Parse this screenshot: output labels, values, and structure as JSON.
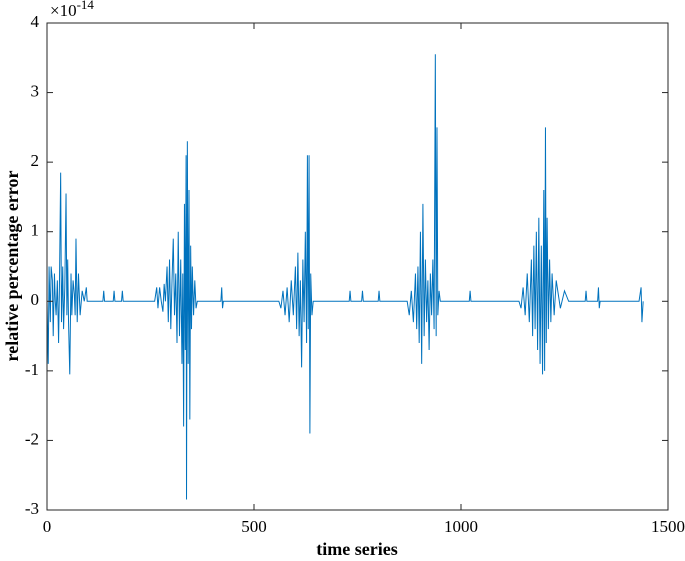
{
  "chart_data": {
    "type": "line",
    "x_label": "time series",
    "y_label": "relative percentage error",
    "y_multiplier_base": "×10",
    "y_multiplier_exponent": "-14",
    "color": "#0072BD",
    "xlim": [
      0,
      1500
    ],
    "xticks": [
      0,
      500,
      1000,
      1500
    ],
    "ylim": [
      -3,
      4
    ],
    "yticks": [
      -3,
      -2,
      -1,
      0,
      1,
      2,
      3,
      4
    ],
    "grid": false,
    "box": true,
    "x": [
      0,
      3,
      5,
      8,
      10,
      13,
      15,
      18,
      20,
      22,
      25,
      28,
      30,
      33,
      35,
      38,
      40,
      43,
      46,
      48,
      50,
      52,
      55,
      58,
      60,
      63,
      66,
      68,
      70,
      73,
      76,
      80,
      85,
      90,
      95,
      97,
      135,
      137,
      139,
      160,
      162,
      164,
      180,
      182,
      184,
      260,
      265,
      268,
      272,
      276,
      280,
      283,
      286,
      290,
      293,
      296,
      299,
      302,
      305,
      308,
      311,
      314,
      317,
      320,
      323,
      326,
      328,
      330,
      332,
      334,
      336,
      337,
      339,
      341,
      343,
      345,
      347,
      349,
      351,
      354,
      357,
      360,
      363,
      420,
      422,
      424,
      426,
      560,
      565,
      570,
      575,
      580,
      585,
      590,
      595,
      600,
      603,
      606,
      609,
      612,
      615,
      618,
      621,
      624,
      627,
      629,
      631,
      633,
      635,
      637,
      640,
      643,
      730,
      732,
      734,
      760,
      762,
      764,
      800,
      802,
      804,
      870,
      875,
      880,
      885,
      890,
      893,
      896,
      899,
      902,
      905,
      908,
      911,
      914,
      917,
      920,
      923,
      926,
      929,
      932,
      935,
      938,
      940,
      942,
      944,
      947,
      950,
      1020,
      1022,
      1024,
      1140,
      1145,
      1150,
      1155,
      1160,
      1165,
      1170,
      1173,
      1176,
      1179,
      1182,
      1185,
      1188,
      1191,
      1194,
      1197,
      1200,
      1202,
      1204,
      1206,
      1208,
      1211,
      1214,
      1217,
      1220,
      1225,
      1230,
      1240,
      1250,
      1260,
      1300,
      1302,
      1304,
      1330,
      1332,
      1334,
      1336,
      1430,
      1435,
      1437,
      1440
    ],
    "values": [
      0,
      -0.9,
      0.5,
      -0.3,
      0.5,
      0.3,
      -0.5,
      0.4,
      0,
      -0.2,
      0.3,
      -0.6,
      0.2,
      1.85,
      -0.3,
      0.5,
      -0.4,
      0.2,
      1.55,
      -0.2,
      0.6,
      -0.3,
      -1.05,
      0.4,
      -0.2,
      0.3,
      0.1,
      -0.2,
      0.9,
      -0.3,
      0.4,
      -0.2,
      0.15,
      0,
      0.2,
      0,
      0,
      0.15,
      0,
      0,
      0.15,
      0,
      0,
      0.15,
      0,
      0,
      0.2,
      -0.1,
      0.2,
      0,
      -0.15,
      0.25,
      0,
      0.5,
      -0.3,
      0.6,
      -0.4,
      0.3,
      0.9,
      -0.2,
      0.4,
      -0.6,
      1.0,
      -0.5,
      0.6,
      -0.9,
      0.4,
      -1.8,
      1.4,
      -0.7,
      2.1,
      -2.85,
      2.3,
      -0.9,
      1.6,
      -1.7,
      0.8,
      -0.4,
      0.5,
      -0.2,
      0.3,
      -0.1,
      0,
      0,
      0.2,
      -0.1,
      0,
      0,
      -0.1,
      0.15,
      -0.2,
      0.2,
      -0.3,
      0.3,
      -0.2,
      0.5,
      -0.4,
      0.7,
      -0.5,
      0.3,
      -0.95,
      0.6,
      -0.3,
      1.0,
      -0.6,
      2.1,
      -0.4,
      2.1,
      -1.9,
      0.4,
      -0.2,
      0,
      0,
      0.15,
      0,
      0,
      0.15,
      0,
      0,
      0.15,
      0,
      0,
      -0.2,
      0.15,
      -0.3,
      0.4,
      -0.4,
      0.5,
      -0.6,
      1.0,
      -0.9,
      1.4,
      -0.5,
      0.6,
      -0.3,
      0.3,
      -0.7,
      0.4,
      -0.2,
      0.6,
      -0.4,
      3.55,
      -0.5,
      2.5,
      -0.2,
      0.15,
      0,
      0,
      0.15,
      0,
      0,
      -0.1,
      0.2,
      -0.2,
      0.4,
      -0.3,
      0.6,
      -0.5,
      0.8,
      -0.4,
      1.0,
      -0.7,
      1.2,
      -0.9,
      0.8,
      -1.05,
      1.6,
      -1.0,
      2.5,
      -0.6,
      1.2,
      -0.4,
      0.6,
      -0.3,
      0.4,
      -0.2,
      0.3,
      -0.1,
      0.15,
      0,
      0,
      0.15,
      0,
      0,
      0.2,
      -0.1,
      0,
      0,
      0.2,
      -0.3,
      0
    ]
  }
}
